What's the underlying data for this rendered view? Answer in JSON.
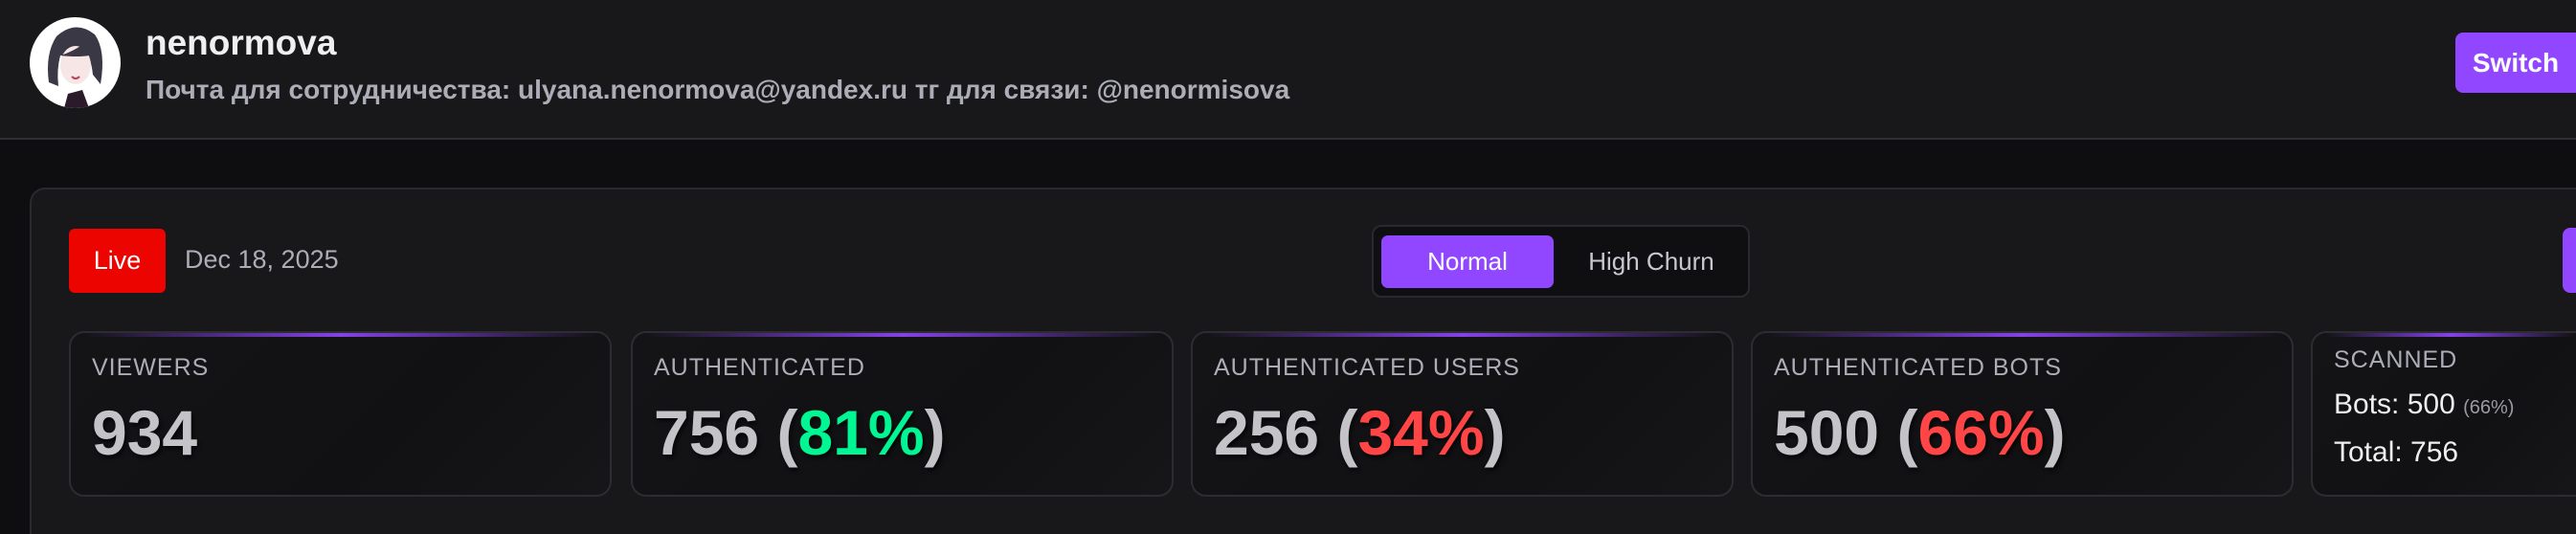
{
  "header": {
    "channel_name": "nenormova",
    "description": "Почта для сотрудничества: ulyana.nenormova@yandex.ru тг для связи: @nenormisova",
    "switch_button": "Switch"
  },
  "status": {
    "live_label": "Live",
    "date": "Dec 18, 2025"
  },
  "mode_toggle": {
    "options": [
      "Normal",
      "High Churn"
    ],
    "selected": "Normal"
  },
  "cards": [
    {
      "label": "VIEWERS",
      "value": "934"
    },
    {
      "label": "AUTHENTICATED",
      "value": "756",
      "percent": "81%",
      "percent_color": "#00f593"
    },
    {
      "label": "AUTHENTICATED USERS",
      "value": "256",
      "percent": "34%",
      "percent_color": "#ff4545"
    },
    {
      "label": "AUTHENTICATED BOTS",
      "value": "500",
      "percent": "66%",
      "percent_color": "#ff4545"
    }
  ],
  "scanned": {
    "label": "SCANNED",
    "bots_label": "Bots: 500",
    "bots_percent": "(66%)",
    "total_label": "Total: 756"
  },
  "colors": {
    "accent": "#9147ff",
    "live": "#eb0400",
    "good": "#00f593",
    "bad": "#ff4545"
  }
}
